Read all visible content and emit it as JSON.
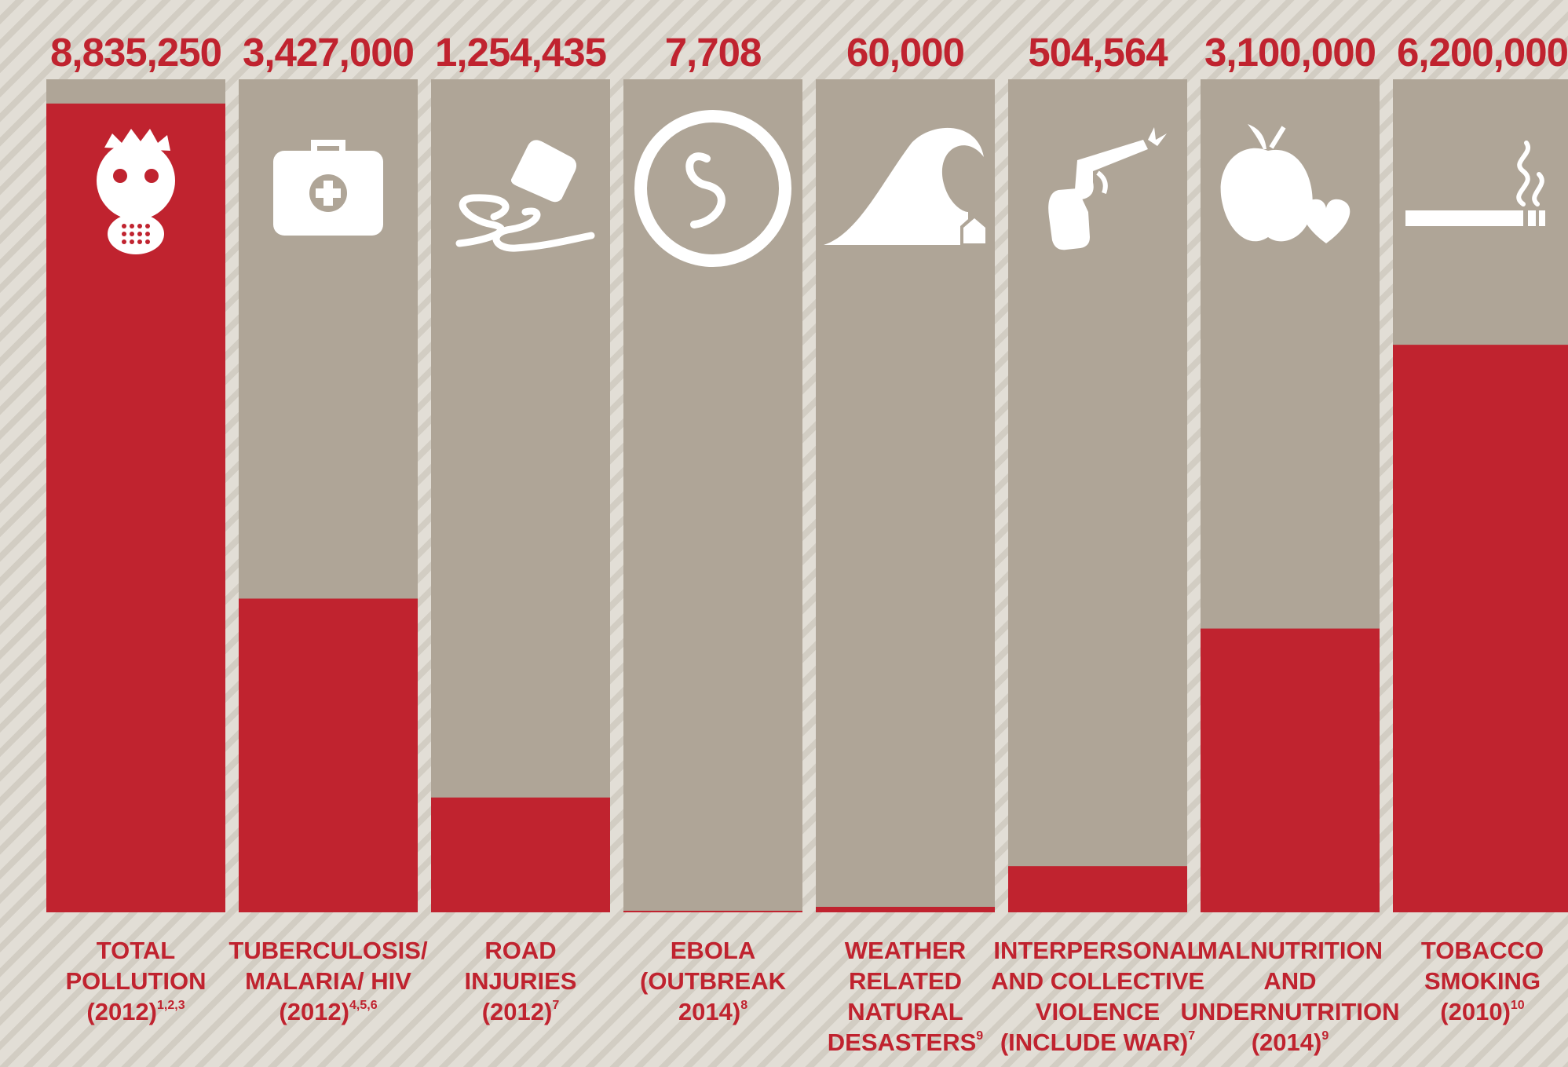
{
  "colors": {
    "bar": "#c0232f",
    "column_bg": "#afa597",
    "text": "#c0232f",
    "icon": "#ffffff"
  },
  "chart_data": {
    "type": "bar",
    "categories": [
      "TOTAL POLLUTION (2012)",
      "TUBERCULOSIS/ MALARIA/ HIV (2012)",
      "ROAD INJURIES (2012)",
      "EBOLA (OUTBREAK 2014)",
      "WEATHER RELATED NATURAL DESASTERS",
      "INTERPERSONAL AND COLLECTIVE VIOLENCE (INCLUDE WAR)",
      "MALNUTRITION AND UNDERNUTRITION (2014)",
      "TOBACCO SMOKING (2010)"
    ],
    "values": [
      8835250,
      3427000,
      1254435,
      7708,
      60000,
      504564,
      3100000,
      6200000
    ],
    "ylim": [
      0,
      9100000
    ],
    "grid": false,
    "legend": "none",
    "title": "",
    "xlabel": "",
    "ylabel": ""
  },
  "bars": [
    {
      "value_label": "8,835,250",
      "label_lines": [
        "TOTAL",
        "POLLUTION",
        "(2012)"
      ],
      "sup": "1,2,3",
      "icon": "gas-mask-icon"
    },
    {
      "value_label": "3,427,000",
      "label_lines": [
        "TUBERCULOSIS/",
        "MALARIA/ HIV",
        "(2012)"
      ],
      "sup": "4,5,6",
      "icon": "medical-kit-icon"
    },
    {
      "value_label": "1,254,435",
      "label_lines": [
        "ROAD",
        "INJURIES",
        "(2012)"
      ],
      "sup": "7",
      "icon": "skidding-car-icon"
    },
    {
      "value_label": "7,708",
      "label_lines": [
        "EBOLA",
        "(OUTBREAK",
        "2014)"
      ],
      "sup": "8",
      "icon": "virus-icon"
    },
    {
      "value_label": "60,000",
      "label_lines": [
        "WEATHER",
        "RELATED",
        "NATURAL",
        "DESASTERS"
      ],
      "sup": "9",
      "icon": "wave-icon"
    },
    {
      "value_label": "504,564",
      "label_lines": [
        "INTERPERSONAL",
        "AND COLLECTIVE",
        "VIOLENCE",
        "(INCLUDE WAR)"
      ],
      "sup": "7",
      "icon": "revolver-icon"
    },
    {
      "value_label": "3,100,000",
      "label_lines": [
        "MALNUTRITION",
        "AND",
        "UNDERNUTRITION",
        "(2014)"
      ],
      "sup": "9",
      "icon": "apple-heart-icon"
    },
    {
      "value_label": "6,200,000",
      "label_lines": [
        "TOBACCO",
        "SMOKING",
        "(2010)"
      ],
      "sup": "10",
      "icon": "cigarette-icon"
    }
  ]
}
